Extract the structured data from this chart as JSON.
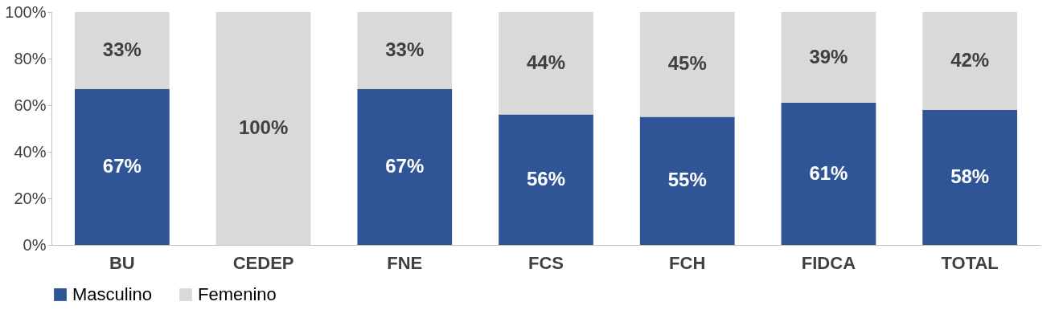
{
  "chart_data": {
    "type": "bar",
    "stacked": true,
    "categories": [
      "BU",
      "CEDEP",
      "FNE",
      "FCS",
      "FCH",
      "FIDCA",
      "TOTAL"
    ],
    "series": [
      {
        "name": "Masculino",
        "color": "#2f5597",
        "values": [
          67,
          0,
          67,
          56,
          55,
          61,
          58
        ],
        "value_labels": [
          "67%",
          null,
          "67%",
          "56%",
          "55%",
          "61%",
          "58%"
        ]
      },
      {
        "name": "Femenino",
        "color": "#d9d9d9",
        "values": [
          33,
          100,
          33,
          44,
          45,
          39,
          42
        ],
        "value_labels": [
          "33%",
          "100%",
          "33%",
          "44%",
          "45%",
          "39%",
          "42%"
        ]
      }
    ],
    "ylim": [
      0,
      100
    ],
    "yticks": [
      {
        "value": 0,
        "label": "0%"
      },
      {
        "value": 20,
        "label": "20%"
      },
      {
        "value": 40,
        "label": "40%"
      },
      {
        "value": 60,
        "label": "60%"
      },
      {
        "value": 80,
        "label": "80%"
      },
      {
        "value": 100,
        "label": "100%"
      }
    ],
    "grid": false,
    "legend": "bottom"
  }
}
